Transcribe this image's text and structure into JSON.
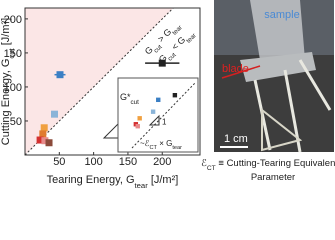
{
  "chart_data": [
    {
      "type": "scatter",
      "xlabel": [
        "Tearing Energy, G",
        "tear",
        " [J/m²]"
      ],
      "ylabel": [
        "Cutting Energy, G",
        "cut",
        " [J/m²]"
      ],
      "annotations": [
        [
          "G",
          "cut",
          " > G",
          "tear"
        ],
        [
          "G",
          "cut",
          " < G",
          "tear"
        ]
      ],
      "slope_label": "1",
      "x": [
        200,
        51,
        43,
        28,
        26,
        22,
        29,
        35
      ],
      "values": [
        135,
        118,
        60,
        40,
        31,
        22,
        21,
        18
      ],
      "xerr": [
        25,
        8,
        3,
        3,
        3,
        3,
        3,
        3
      ],
      "colors": [
        "#222222",
        "#3a7fc4",
        "#8ab4d8",
        "#f0a040",
        "#e07b30",
        "#d43030",
        "#e88a8a",
        "#8b4a3a"
      ],
      "xlim": [
        0,
        255
      ],
      "ylim": [
        0,
        216
      ],
      "xticks": [
        50,
        100,
        150,
        200
      ],
      "yticks": [
        50,
        100,
        150,
        200
      ]
    },
    {
      "type": "scatter",
      "ylabel": [
        "G*",
        "cut"
      ],
      "annotations": [
        [
          "~ℰ",
          "CT",
          " × G",
          "tear"
        ]
      ],
      "slope_label": "1",
      "x": [
        67,
        41,
        33,
        12,
        6,
        9
      ],
      "values": [
        80,
        73,
        55,
        45,
        36,
        33
      ],
      "colors": [
        "#222222",
        "#3a7fc4",
        "#8ab4d8",
        "#f0a040",
        "#d43030",
        "#e88a8a"
      ],
      "xlim": [
        0,
        100
      ],
      "ylim": [
        0,
        100
      ]
    }
  ],
  "photo": {
    "sample": "sample",
    "blade": "blade",
    "scale": "1 cm"
  },
  "caption": [
    [
      "ℰ",
      "CT",
      " ≡ Cutting-Tearing Equivalency"
    ],
    "Parameter"
  ]
}
